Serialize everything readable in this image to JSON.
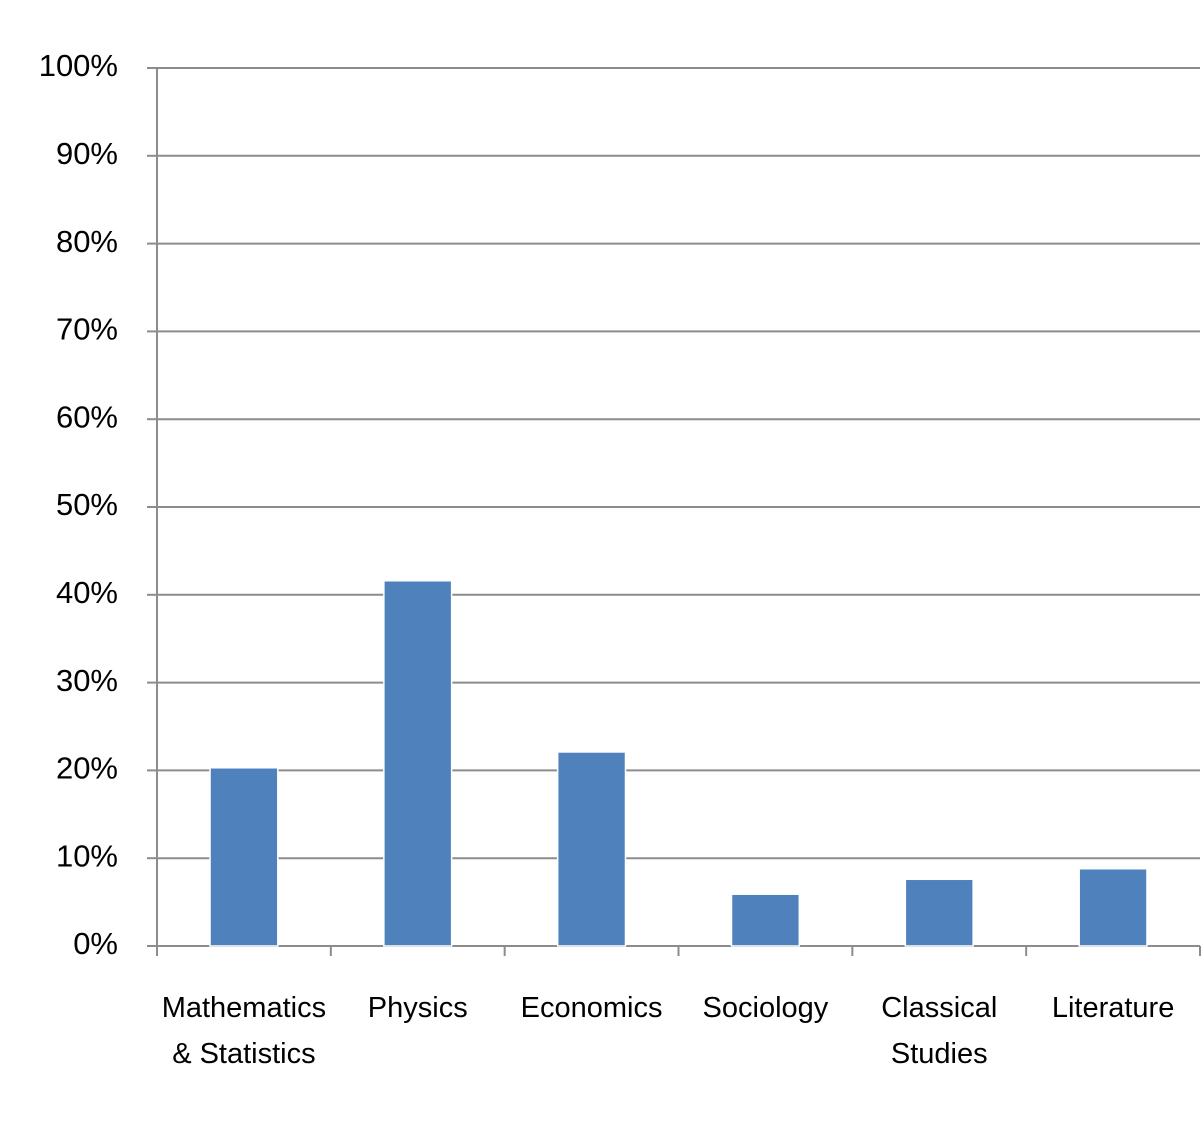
{
  "chart_data": {
    "type": "bar",
    "categories": [
      "Mathematics & Statistics",
      "Physics",
      "Economics",
      "Sociology",
      "Classical Studies",
      "Literature"
    ],
    "values": [
      20.3,
      41.6,
      22.1,
      5.9,
      7.6,
      8.8
    ],
    "color": "#4f81bd",
    "ylim": [
      0,
      100
    ],
    "yticks": [
      {
        "value": 0,
        "label": "0%"
      },
      {
        "value": 10,
        "label": "10%"
      },
      {
        "value": 20,
        "label": "20%"
      },
      {
        "value": 30,
        "label": "30%"
      },
      {
        "value": 40,
        "label": "40%"
      },
      {
        "value": 50,
        "label": "50%"
      },
      {
        "value": 60,
        "label": "60%"
      },
      {
        "value": 70,
        "label": "70%"
      },
      {
        "value": 80,
        "label": "80%"
      },
      {
        "value": 90,
        "label": "90%"
      },
      {
        "value": 100,
        "label": "100%"
      }
    ],
    "grid": true
  }
}
